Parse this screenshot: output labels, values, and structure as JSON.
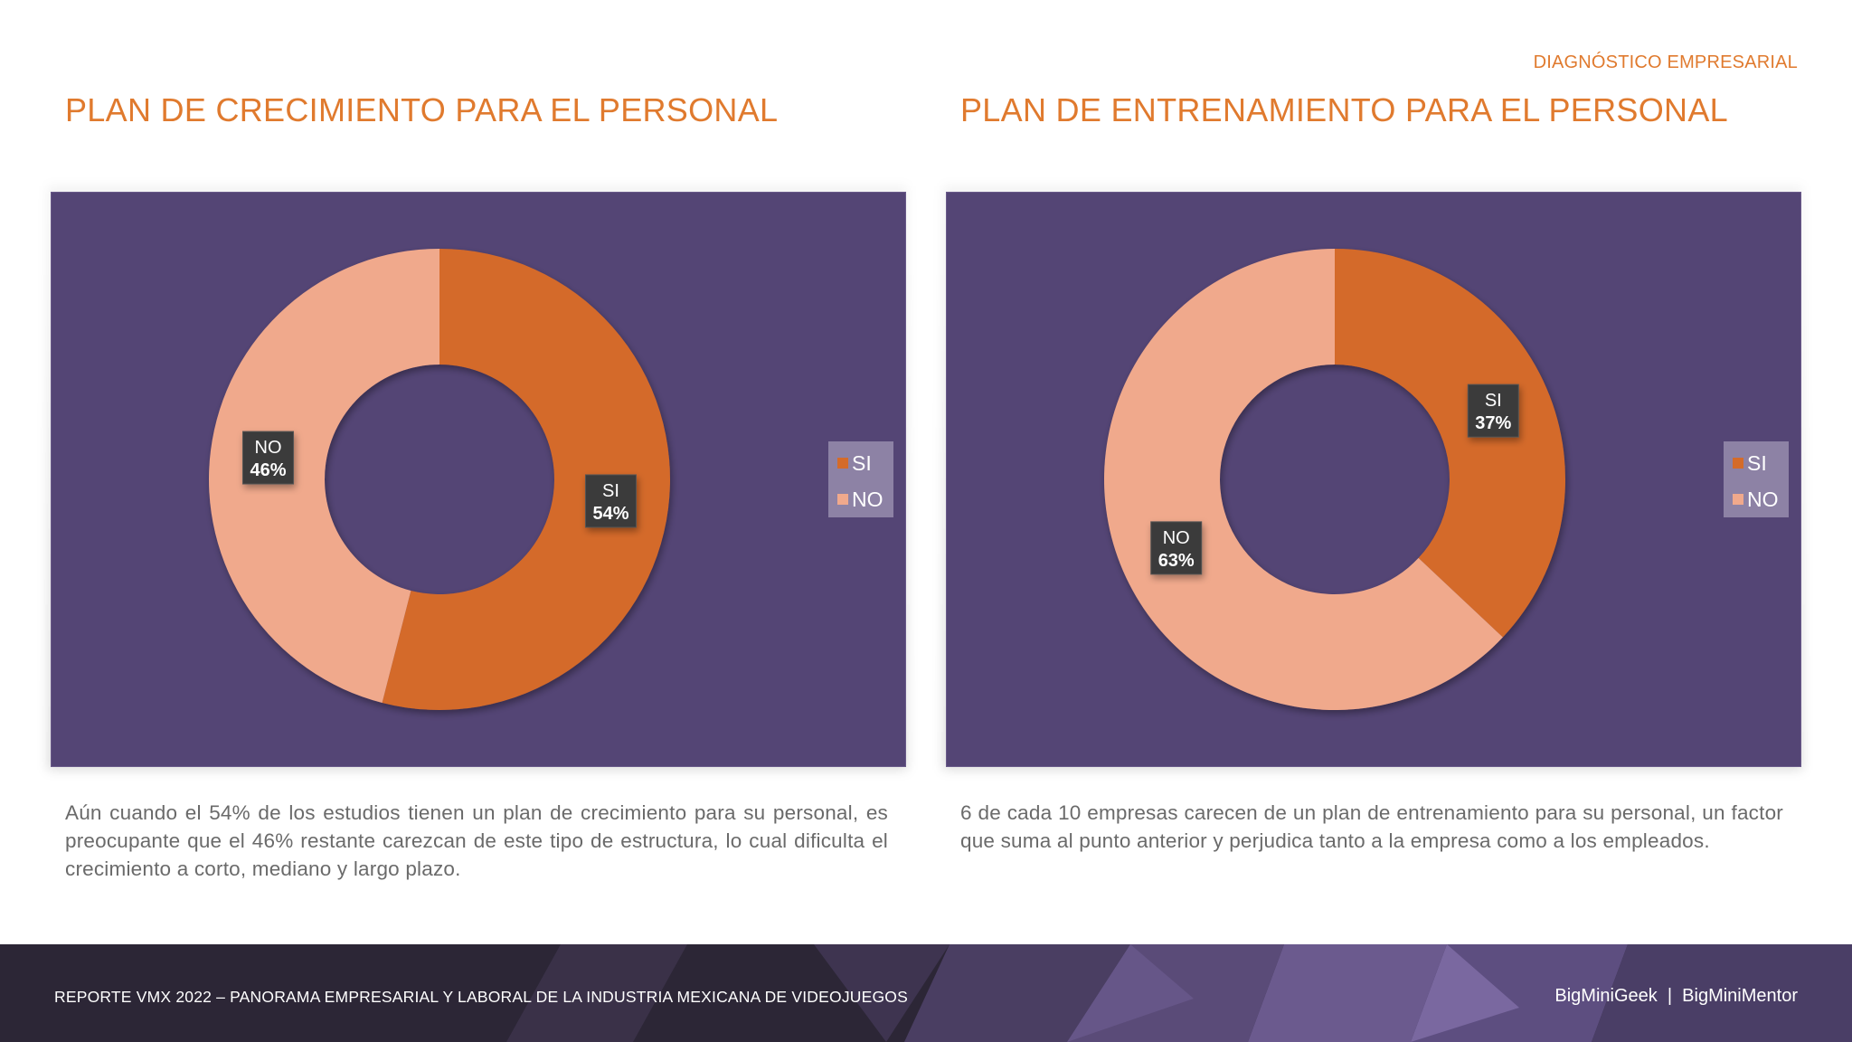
{
  "header": {
    "tag": "DIAGNÓSTICO EMPRESARIAL"
  },
  "sections": [
    {
      "title": "PLAN DE CRECIMIENTO PARA EL PERSONAL",
      "body": "Aún cuando el 54% de los estudios tienen un plan de crecimiento para su personal, es preocupante que el 46% restante carezcan de este tipo de estructura, lo cual dificulta el crecimiento a corto, mediano y largo plazo."
    },
    {
      "title": "PLAN DE ENTRENAMIENTO PARA EL PERSONAL",
      "body": "6 de cada 10 empresas carecen de un plan de entrenamiento para su personal, un factor que suma al punto anterior y perjudica tanto a la empresa como a los empleados."
    }
  ],
  "chart_data": [
    {
      "type": "pie",
      "donut": true,
      "categories": [
        "SI",
        "NO"
      ],
      "values": [
        54,
        46
      ],
      "labels": [
        "54%",
        "46%"
      ],
      "colors": [
        "#d46b2a",
        "#f0a98c"
      ],
      "legend": "right"
    },
    {
      "type": "pie",
      "donut": true,
      "categories": [
        "SI",
        "NO"
      ],
      "values": [
        37,
        63
      ],
      "labels": [
        "37%",
        "63%"
      ],
      "colors": [
        "#d46b2a",
        "#f0a98c"
      ],
      "legend": "right"
    }
  ],
  "footer": {
    "left": "REPORTE VMX 2022 – PANORAMA EMPRESARIAL Y LABORAL DE LA INDUSTRIA MEXICANA DE VIDEOJUEGOS",
    "right": "BigMiniGeek  |  BigMiniMentor"
  }
}
